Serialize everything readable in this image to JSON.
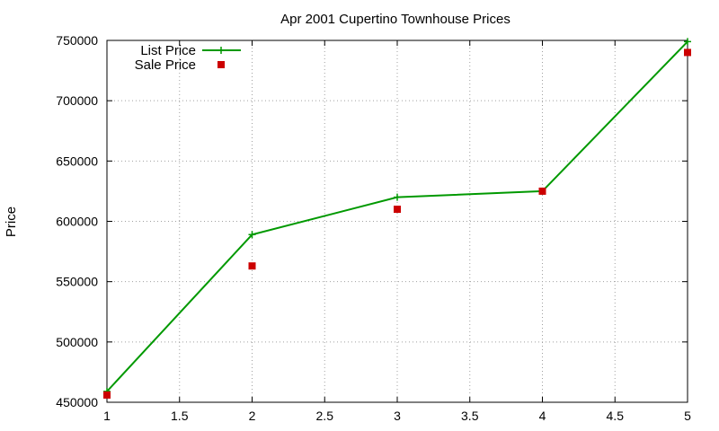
{
  "chart_data": {
    "type": "line",
    "title": "Apr 2001 Cupertino Townhouse Prices",
    "xlabel": "",
    "ylabel": "Price",
    "xlim": [
      1,
      5
    ],
    "ylim": [
      450000,
      750000
    ],
    "xticks": [
      "1",
      "1.5",
      "2",
      "2.5",
      "3",
      "3.5",
      "4",
      "4.5",
      "5"
    ],
    "yticks": [
      "450000",
      "500000",
      "550000",
      "600000",
      "650000",
      "700000",
      "750000"
    ],
    "grid": true,
    "legend_position": "top-left",
    "series": [
      {
        "name": "List Price",
        "style": "linespoints",
        "marker": "plus",
        "color": "#009900",
        "x": [
          1,
          2,
          3,
          4,
          5
        ],
        "y": [
          459000,
          589000,
          620000,
          625000,
          749000
        ]
      },
      {
        "name": "Sale Price",
        "style": "points",
        "marker": "square",
        "color": "#cc0000",
        "x": [
          1,
          2,
          3,
          4,
          5
        ],
        "y": [
          456000,
          563000,
          610000,
          625000,
          740000
        ]
      }
    ]
  }
}
